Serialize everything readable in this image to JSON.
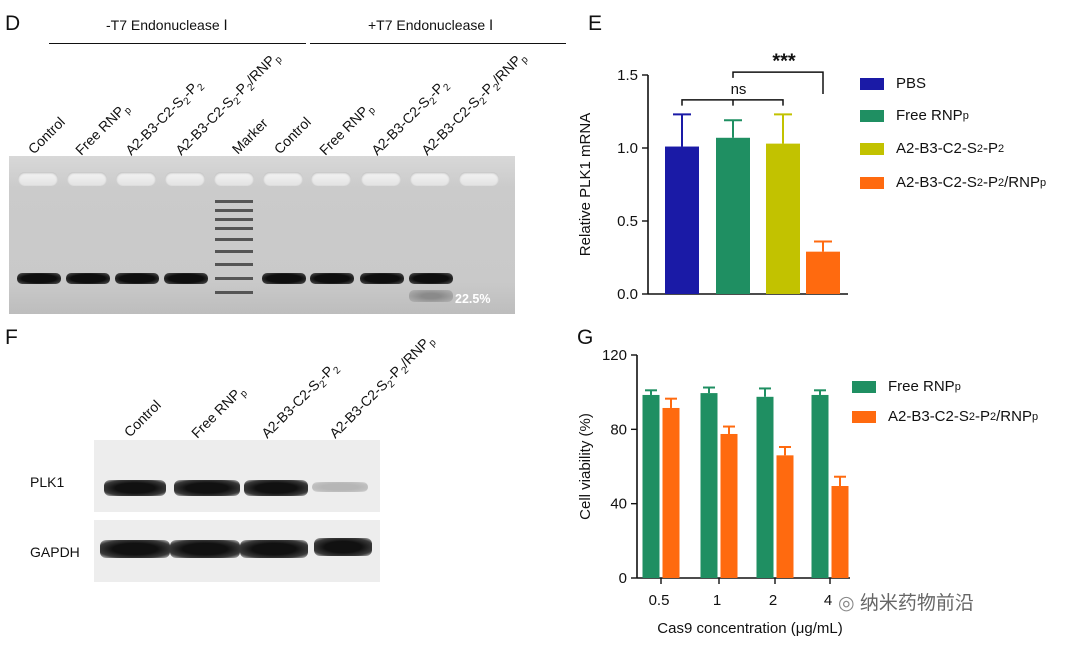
{
  "panelD": {
    "letter": "D",
    "header_minus": "-T7 Endonuclease Ⅰ",
    "header_plus": "+T7 Endonuclease Ⅰ",
    "lanes": [
      "Control",
      "Free RNP",
      "A2-B3-C2-S",
      "A2-B3-C2-S",
      "Marker",
      "Control",
      "Free RNP",
      "A2-B3-C2-S",
      "A2-B3-C2-S"
    ],
    "lane_labels_rich": {
      "free": [
        "Free RNP",
        "p"
      ],
      "nano": [
        "A2-B3-C2-S",
        "2",
        "-P",
        "2"
      ],
      "nano_rnp": [
        "A2-B3-C2-S",
        "2",
        "-P",
        "2",
        "/RNP",
        "p"
      ]
    },
    "cleavage_percent": "22.5%"
  },
  "panelF": {
    "letter": "F",
    "lanes": [
      "Control",
      "Free RNP",
      "A2-B3-C2-S2-P2",
      "A2-B3-C2-S2-P2/RNP p"
    ],
    "rows": [
      "PLK1",
      "GAPDH"
    ]
  },
  "chart_data": [
    {
      "panel": "E",
      "type": "bar",
      "ylabel": "Relative PLK1 mRNA",
      "xlabel": "",
      "ylim": [
        0,
        1.5
      ],
      "yticks": [
        "0.0",
        "0.5",
        "1.0",
        "1.5"
      ],
      "categories": [
        "PBS",
        "Free RNPp",
        "A2-B3-C2-S2-P2",
        "A2-B3-C2-S2-P2/RNPp"
      ],
      "values": [
        1.01,
        1.07,
        1.03,
        0.29
      ],
      "errors": [
        0.22,
        0.12,
        0.2,
        0.07
      ],
      "colors": [
        "#1a1aa6",
        "#1f8f62",
        "#c2c200",
        "#ff6a0f"
      ],
      "legend": [
        "PBS",
        "Free RNP",
        "A2-B3-C2-S",
        "A2-B3-C2-S"
      ],
      "annotations": [
        "ns",
        "***"
      ]
    },
    {
      "panel": "G",
      "type": "bar",
      "xlabel": "Cas9 concentration (μg/mL)",
      "ylabel": "Cell viability (%)",
      "ylim": [
        0,
        120
      ],
      "yticks": [
        "0",
        "40",
        "80",
        "120"
      ],
      "categories": [
        "0.5",
        "1",
        "2",
        "4"
      ],
      "series": [
        {
          "name": "Free RNPp",
          "values": [
            98.5,
            99.5,
            97.5,
            98.5
          ],
          "errors": [
            2.5,
            3,
            4.5,
            2.5
          ],
          "color": "#1f8f62"
        },
        {
          "name": "A2-B3-C2-S2-P2/RNPp",
          "values": [
            91.5,
            77.5,
            66,
            49.5
          ],
          "errors": [
            5,
            4,
            4.5,
            5
          ],
          "color": "#ff6a0f"
        }
      ],
      "legend": [
        "Free RNP",
        "A2-B3-C2-S"
      ]
    }
  ],
  "watermark": "纳米药物前沿"
}
